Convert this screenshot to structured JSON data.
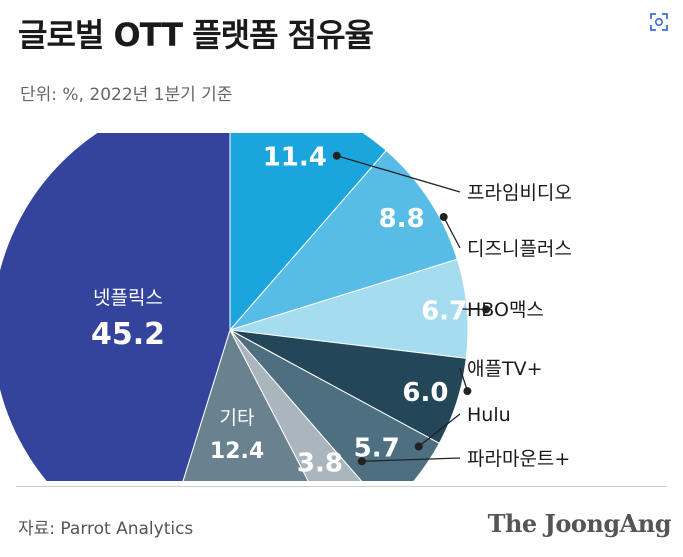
{
  "header": {
    "title": "글로벌 OTT 플랫폼 점유율",
    "subtitle": "단위: %, 2022년 1분기 기준"
  },
  "footer": {
    "source": "자료: Parrot Analytics",
    "brand": "The JoongAng"
  },
  "chart_data": {
    "type": "pie",
    "title": "글로벌 OTT 플랫폼 점유율",
    "unit": "%",
    "period": "2022년 1분기 기준",
    "start": "12 o'clock",
    "direction": "clockwise",
    "slices": [
      {
        "id": "prime",
        "label": "프라임비디오",
        "value": 11.4,
        "value_text": "11.4",
        "color": "#1ba5dd",
        "label_position": "callout"
      },
      {
        "id": "disney",
        "label": "디즈니플러스",
        "value": 8.8,
        "value_text": "8.8",
        "color": "#58bde6",
        "label_position": "callout"
      },
      {
        "id": "hbo",
        "label": "HBO맥스",
        "value": 6.7,
        "value_text": "6.7",
        "color": "#a6dcf0",
        "label_position": "callout"
      },
      {
        "id": "appletv",
        "label": "애플TV+",
        "value": 6.0,
        "value_text": "6.0",
        "color": "#234658",
        "label_position": "callout"
      },
      {
        "id": "hulu",
        "label": "Hulu",
        "value": 5.7,
        "value_text": "5.7",
        "color": "#4e6f80",
        "label_position": "callout"
      },
      {
        "id": "paramount",
        "label": "파라마운트+",
        "value": 3.8,
        "value_text": "3.8",
        "color": "#aab5bd",
        "label_position": "callout"
      },
      {
        "id": "other",
        "label": "기타",
        "value": 12.4,
        "value_text": "12.4",
        "color": "#6a8190",
        "label_position": "inside"
      },
      {
        "id": "netflix",
        "label": "넷플릭스",
        "value": 45.2,
        "value_text": "45.2",
        "color": "#34449c",
        "label_position": "inside"
      }
    ]
  }
}
